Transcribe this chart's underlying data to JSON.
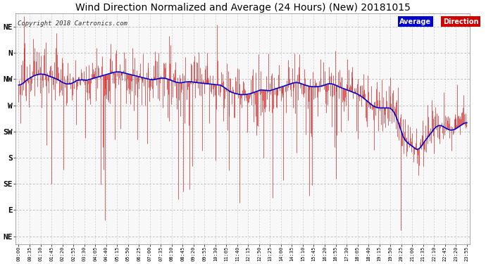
{
  "title": "Wind Direction Normalized and Average (24 Hours) (New) 20181015",
  "copyright": "Copyright 2018 Cartronics.com",
  "ytick_labels": [
    "NE",
    "N",
    "NW",
    "W",
    "SW",
    "S",
    "SE",
    "E",
    "NE"
  ],
  "ytick_values": [
    8,
    7,
    6,
    5,
    4,
    3,
    2,
    1,
    0
  ],
  "ylim": [
    -0.3,
    8.5
  ],
  "bg_color": "#f8f8f8",
  "grid_color": "#aaaaaa",
  "red_color": "#cc0000",
  "blue_color": "#0000cc",
  "legend_avg_bg": "#0000cc",
  "legend_dir_bg": "#cc0000",
  "title_fontsize": 10,
  "copyright_fontsize": 6.5,
  "xtick_fontsize": 5,
  "ytick_fontsize": 8,
  "time_step_min": 35,
  "n_raw_points": 1440,
  "seed": 123
}
